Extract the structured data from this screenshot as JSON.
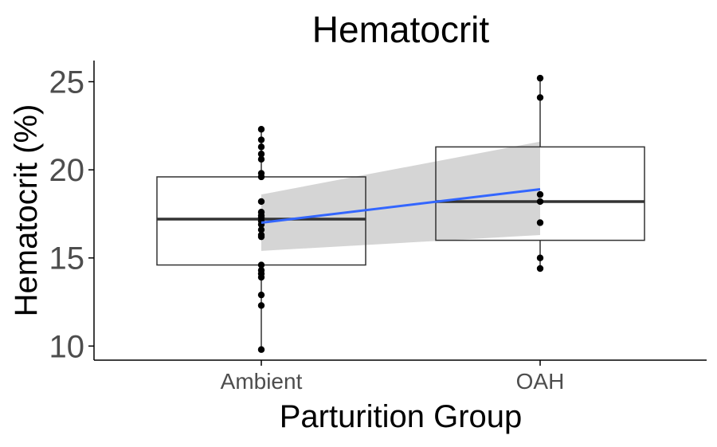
{
  "chart_data": {
    "type": "box",
    "title": "Hematocrit",
    "xlabel": "Parturition Group",
    "ylabel": "Hematocrit (%)",
    "categories": [
      "Ambient",
      "OAH"
    ],
    "ylim": [
      9.2,
      26.2
    ],
    "yticks": [
      10,
      15,
      20,
      25
    ],
    "grid": false,
    "boxes": [
      {
        "category": "Ambient",
        "q1": 14.6,
        "median": 17.2,
        "q3": 19.6,
        "whisker_low": 9.8,
        "whisker_high": 22.3
      },
      {
        "category": "OAH",
        "q1": 16.0,
        "median": 18.2,
        "q3": 21.3,
        "whisker_low": 14.4,
        "whisker_high": 25.2
      }
    ],
    "points": [
      {
        "category": "Ambient",
        "values": [
          22.3,
          21.7,
          21.3,
          20.9,
          20.6,
          19.8,
          19.6,
          18.2,
          17.6,
          17.4,
          17.3,
          17.1,
          16.9,
          16.6,
          16.3,
          16.2,
          14.6,
          14.3,
          14.1,
          13.9,
          12.9,
          12.3,
          9.8
        ]
      },
      {
        "category": "OAH",
        "values": [
          25.2,
          24.1,
          18.6,
          18.2,
          17.0,
          15.0,
          14.4
        ]
      }
    ],
    "trend": {
      "x": [
        "Ambient",
        "OAH"
      ],
      "y": [
        17.0,
        18.9
      ],
      "ci_low": [
        15.4,
        16.3
      ],
      "ci_high": [
        18.6,
        21.6
      ]
    },
    "colors": {
      "box_line": "#333333",
      "median_line": "#333333",
      "points": "#000000",
      "trend_line": "#3366ff",
      "ci_band": "#d3d3d3",
      "axis": "#000000",
      "tick_label": "#4d4d4d",
      "text": "#000000"
    }
  }
}
